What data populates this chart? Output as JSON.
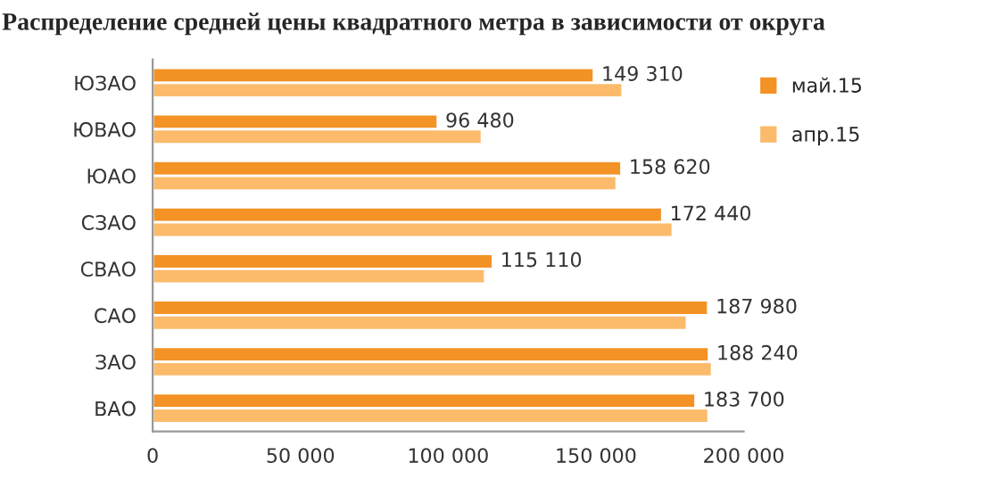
{
  "chart_data": {
    "type": "bar",
    "orientation": "horizontal",
    "title": "Распределение средней цены квадратного метра в зависимости от округа",
    "categories": [
      "ЮЗАО",
      "ЮВАО",
      "ЮАО",
      "СЗАО",
      "СВАО",
      "САО",
      "ЗАО",
      "ВАО"
    ],
    "series": [
      {
        "name": "май.15",
        "color": "#f39225",
        "values": [
          149310,
          96480,
          158620,
          172440,
          115110,
          187980,
          188240,
          183700
        ],
        "value_labels": [
          "149 310",
          "96 480",
          "158 620",
          "172 440",
          "115 110",
          "187 980",
          "188 240",
          "183 700"
        ]
      },
      {
        "name": "апр.15",
        "color": "#fbbb6b",
        "values": [
          159000,
          111400,
          157000,
          176000,
          112500,
          180800,
          189300,
          188100
        ]
      }
    ],
    "xlim": [
      0,
      200000
    ],
    "xticks": [
      0,
      {
        "value": 50000,
        "label": "50 000"
      },
      {
        "value": 100000,
        "label": "100 000"
      },
      {
        "value": 150000,
        "label": "150 000"
      },
      {
        "value": 200000,
        "label": "200 000"
      }
    ],
    "grid": false,
    "legend": "top right"
  }
}
